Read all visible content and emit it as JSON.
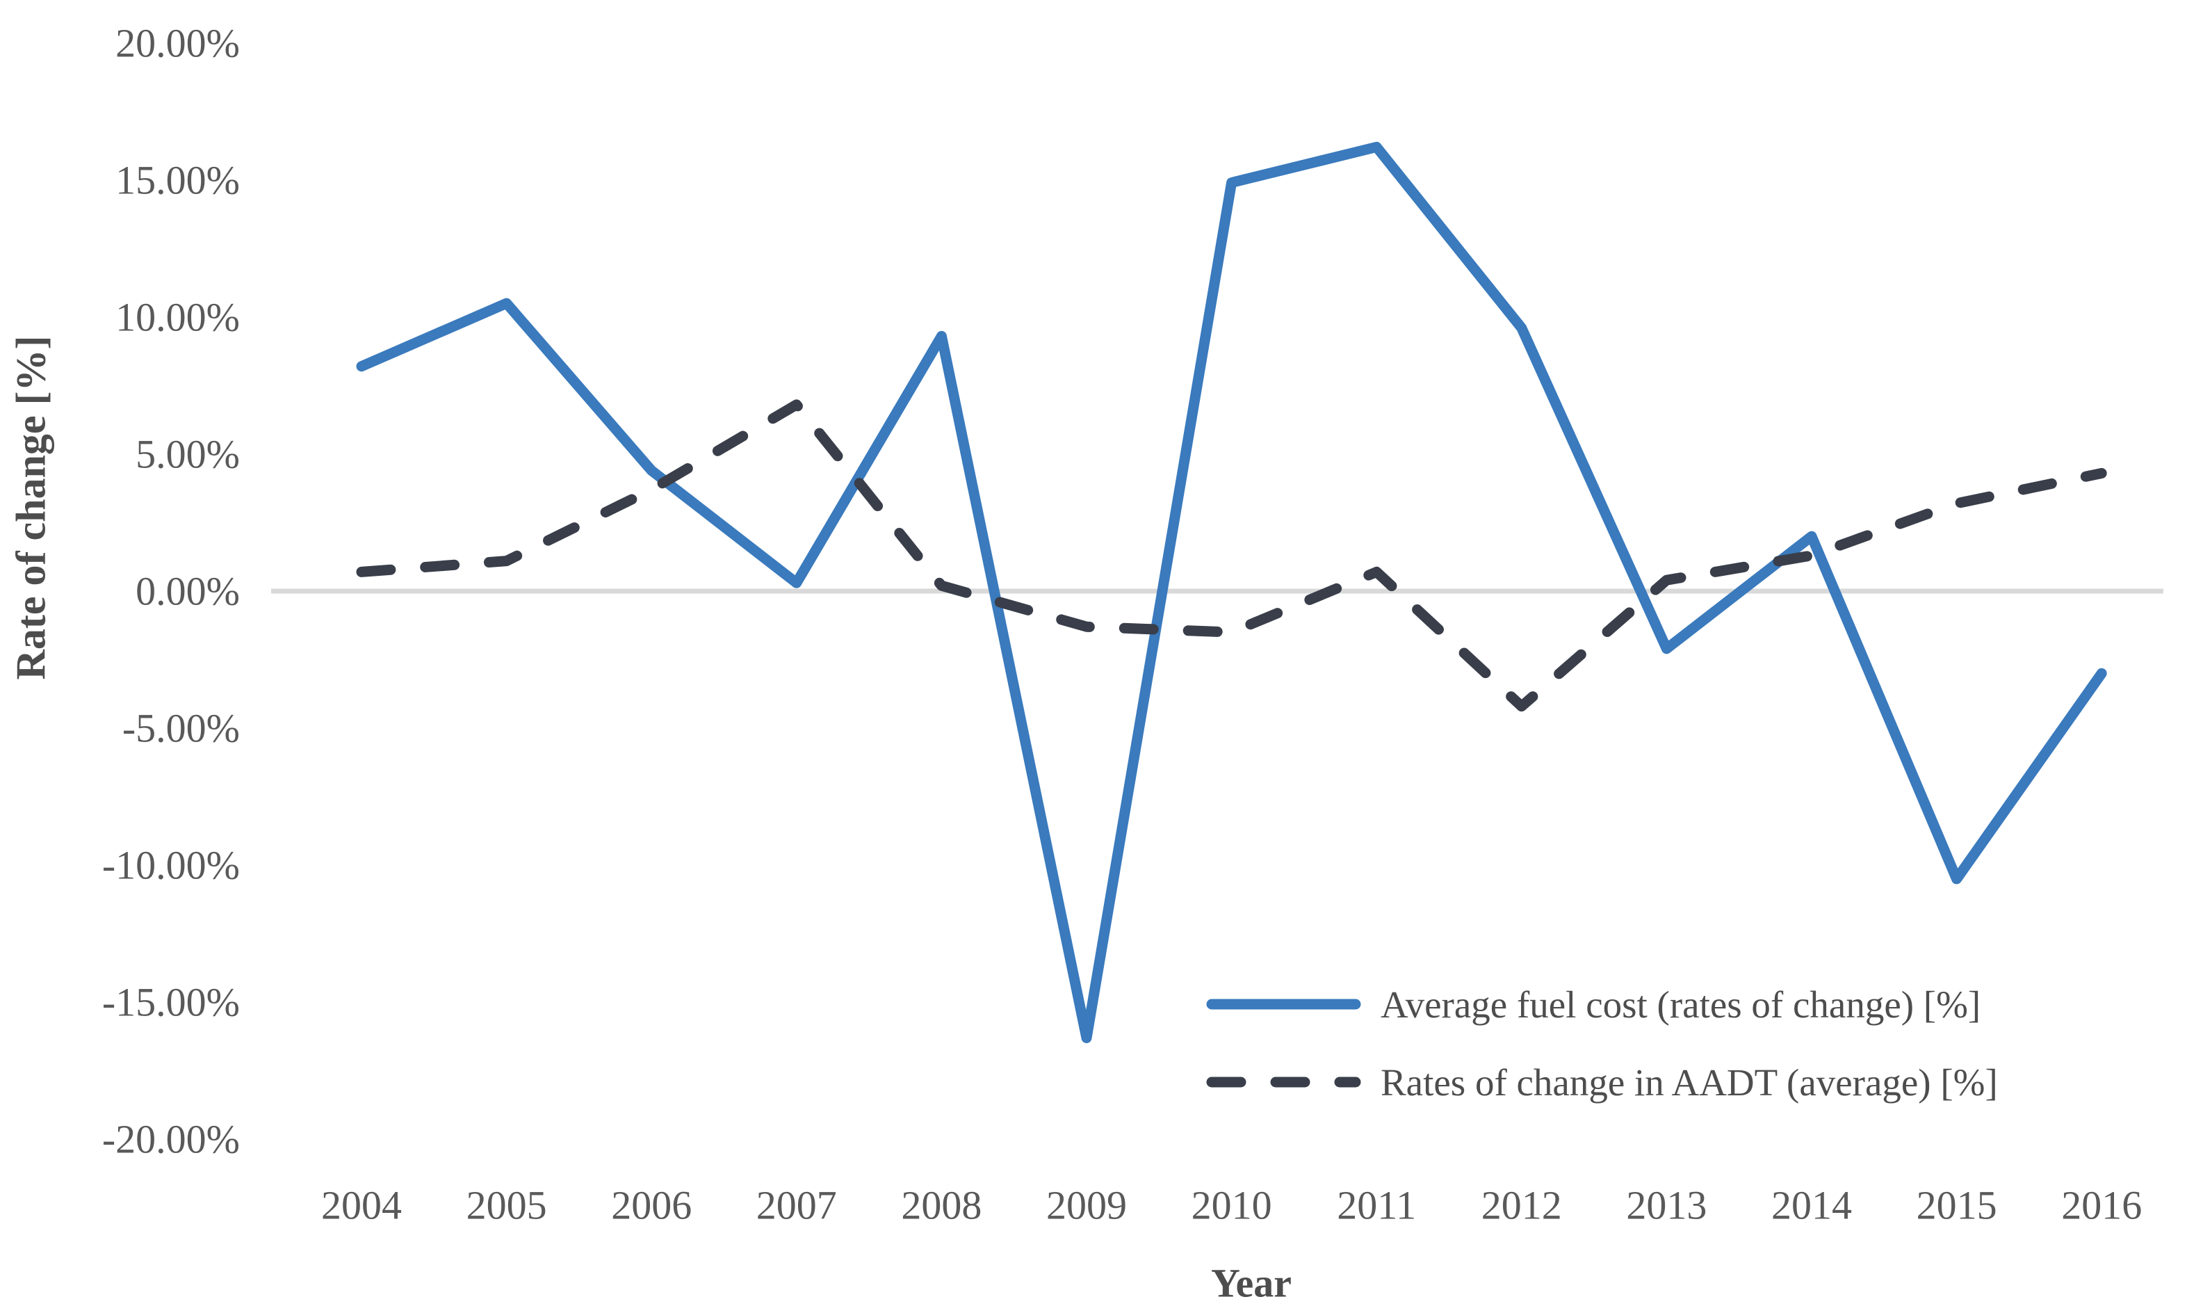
{
  "chart_data": {
    "type": "line",
    "title": "",
    "xlabel": "Year",
    "ylabel": "Rate of change [%]",
    "x": [
      "2004",
      "2005",
      "2006",
      "2007",
      "2008",
      "2009",
      "2010",
      "2011",
      "2012",
      "2013",
      "2014",
      "2015",
      "2016"
    ],
    "ylim": [
      -20,
      20
    ],
    "ytick_step": 5,
    "ytick_labels": [
      "20.00%",
      "15.00%",
      "10.00%",
      "5.00%",
      "0.00%",
      "-5.00%",
      "-10.00%",
      "-15.00%",
      "-20.00%"
    ],
    "grid": false,
    "zero_gridline": true,
    "legend_position": "inside-bottom-right",
    "colors": {
      "fuel_line": "#3A7ABD",
      "aadt_line": "#393E4A",
      "zero_line": "#D9D9D9",
      "tick_text": "#595959",
      "title_text": "#4D4D4D"
    },
    "series": [
      {
        "name": "Average fuel cost (rates of change) [%]",
        "style": "solid",
        "color": "#3A7ABD",
        "values": [
          8.2,
          10.5,
          4.4,
          0.3,
          9.3,
          -16.3,
          14.9,
          16.2,
          9.6,
          -2.1,
          2.0,
          -10.5,
          -3.0
        ]
      },
      {
        "name": "Rates of change in AADT (average) [%]",
        "style": "dashed",
        "color": "#393E4A",
        "values": [
          0.7,
          1.1,
          3.7,
          6.8,
          0.2,
          -1.3,
          -1.5,
          0.7,
          -4.2,
          0.4,
          1.3,
          3.2,
          4.3
        ]
      }
    ]
  }
}
